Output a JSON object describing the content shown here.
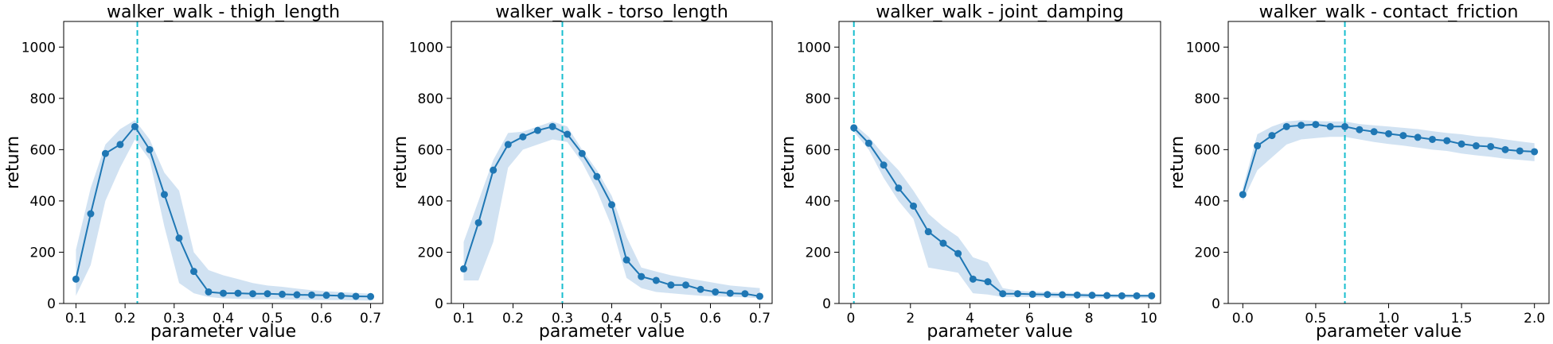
{
  "chart_data": [
    {
      "type": "line",
      "title": "walker_walk - thigh_length",
      "xlabel": "parameter value",
      "ylabel": "return",
      "xlim": [
        0.075,
        0.725
      ],
      "ylim": [
        0,
        1100
      ],
      "xticks": [
        0.1,
        0.2,
        0.3,
        0.4,
        0.5,
        0.6,
        0.7
      ],
      "xtick_labels": [
        "0.1",
        "0.2",
        "0.3",
        "0.4",
        "0.5",
        "0.6",
        "0.7"
      ],
      "yticks": [
        0,
        200,
        400,
        600,
        800,
        1000
      ],
      "ytick_labels": [
        "0",
        "200",
        "400",
        "600",
        "800",
        "1000"
      ],
      "vline": 0.225,
      "x": [
        0.1,
        0.13,
        0.16,
        0.19,
        0.22,
        0.25,
        0.28,
        0.31,
        0.34,
        0.37,
        0.4,
        0.43,
        0.46,
        0.49,
        0.52,
        0.55,
        0.58,
        0.61,
        0.64,
        0.67,
        0.7
      ],
      "y": [
        95,
        350,
        585,
        620,
        690,
        600,
        425,
        255,
        125,
        45,
        40,
        40,
        38,
        38,
        36,
        34,
        33,
        32,
        30,
        28,
        27
      ],
      "y_low": [
        30,
        150,
        400,
        530,
        640,
        560,
        300,
        80,
        40,
        25,
        20,
        18,
        17,
        17,
        16,
        15,
        14,
        13,
        13,
        12,
        11
      ],
      "y_high": [
        210,
        450,
        620,
        680,
        715,
        640,
        510,
        440,
        200,
        130,
        110,
        95,
        80,
        70,
        65,
        58,
        52,
        48,
        44,
        41,
        38
      ]
    },
    {
      "type": "line",
      "title": "walker_walk - torso_length",
      "xlabel": "parameter value",
      "ylabel": "return",
      "xlim": [
        0.075,
        0.725
      ],
      "ylim": [
        0,
        1100
      ],
      "xticks": [
        0.1,
        0.2,
        0.3,
        0.4,
        0.5,
        0.6,
        0.7
      ],
      "xtick_labels": [
        "0.1",
        "0.2",
        "0.3",
        "0.4",
        "0.5",
        "0.6",
        "0.7"
      ],
      "yticks": [
        0,
        200,
        400,
        600,
        800,
        1000
      ],
      "ytick_labels": [
        "0",
        "200",
        "400",
        "600",
        "800",
        "1000"
      ],
      "vline": 0.3,
      "x": [
        0.1,
        0.13,
        0.16,
        0.19,
        0.22,
        0.25,
        0.28,
        0.31,
        0.34,
        0.37,
        0.4,
        0.43,
        0.46,
        0.49,
        0.52,
        0.55,
        0.58,
        0.61,
        0.64,
        0.67,
        0.7
      ],
      "y": [
        135,
        315,
        520,
        620,
        650,
        675,
        690,
        660,
        585,
        495,
        385,
        170,
        105,
        90,
        72,
        72,
        55,
        45,
        40,
        38,
        28
      ],
      "y_low": [
        90,
        90,
        240,
        530,
        600,
        620,
        640,
        630,
        550,
        440,
        300,
        100,
        60,
        45,
        40,
        35,
        30,
        28,
        26,
        24,
        20
      ],
      "y_high": [
        240,
        400,
        560,
        665,
        670,
        690,
        710,
        690,
        600,
        520,
        420,
        260,
        140,
        125,
        110,
        100,
        90,
        80,
        70,
        65,
        60
      ]
    },
    {
      "type": "line",
      "title": "walker_walk - joint_damping",
      "xlabel": "parameter value",
      "ylabel": "return",
      "xlim": [
        -0.4,
        10.4
      ],
      "ylim": [
        0,
        1100
      ],
      "xticks": [
        0,
        2,
        4,
        6,
        8,
        10
      ],
      "xtick_labels": [
        "0",
        "2",
        "4",
        "6",
        "8",
        "10"
      ],
      "yticks": [
        0,
        200,
        400,
        600,
        800,
        1000
      ],
      "ytick_labels": [
        "0",
        "200",
        "400",
        "600",
        "800",
        "1000"
      ],
      "vline": 0.1,
      "x": [
        0.1,
        0.6,
        1.1,
        1.6,
        2.1,
        2.6,
        3.1,
        3.6,
        4.1,
        4.6,
        5.1,
        5.6,
        6.1,
        6.6,
        7.1,
        7.6,
        8.1,
        8.6,
        9.1,
        9.6,
        10.1
      ],
      "y": [
        685,
        625,
        540,
        450,
        380,
        280,
        235,
        195,
        95,
        85,
        38,
        38,
        36,
        35,
        34,
        33,
        32,
        31,
        30,
        30,
        30
      ],
      "y_low": [
        670,
        600,
        490,
        400,
        330,
        140,
        130,
        120,
        40,
        35,
        25,
        25,
        25,
        24,
        23,
        23,
        22,
        22,
        22,
        21,
        21
      ],
      "y_high": [
        700,
        650,
        580,
        520,
        440,
        350,
        300,
        260,
        180,
        160,
        60,
        50,
        46,
        44,
        42,
        40,
        38,
        37,
        36,
        35,
        35
      ]
    },
    {
      "type": "line",
      "title": "walker_walk - contact_friction",
      "xlabel": "parameter value",
      "ylabel": "return",
      "xlim": [
        -0.1,
        2.1
      ],
      "ylim": [
        0,
        1100
      ],
      "xticks": [
        0.0,
        0.5,
        1.0,
        1.5,
        2.0
      ],
      "xtick_labels": [
        "0.0",
        "0.5",
        "1.0",
        "1.5",
        "2.0"
      ],
      "yticks": [
        0,
        200,
        400,
        600,
        800,
        1000
      ],
      "ytick_labels": [
        "0",
        "200",
        "400",
        "600",
        "800",
        "1000"
      ],
      "vline": 0.7,
      "x": [
        0.0,
        0.1,
        0.2,
        0.3,
        0.4,
        0.5,
        0.6,
        0.7,
        0.8,
        0.9,
        1.0,
        1.1,
        1.2,
        1.3,
        1.4,
        1.5,
        1.6,
        1.7,
        1.8,
        1.9,
        2.0
      ],
      "y": [
        425,
        615,
        655,
        690,
        695,
        698,
        690,
        690,
        678,
        670,
        662,
        655,
        648,
        640,
        635,
        622,
        615,
        612,
        600,
        595,
        592
      ],
      "y_low": [
        400,
        520,
        570,
        620,
        640,
        645,
        650,
        650,
        640,
        630,
        622,
        616,
        608,
        600,
        595,
        585,
        578,
        572,
        565,
        560,
        555
      ],
      "y_high": [
        450,
        660,
        690,
        710,
        715,
        712,
        710,
        710,
        700,
        695,
        690,
        685,
        680,
        672,
        665,
        660,
        652,
        648,
        640,
        632,
        625
      ]
    }
  ],
  "colors": {
    "line": "#1f77b4",
    "band": "#c6dbef",
    "vline": "#17becf",
    "axis": "#000000"
  }
}
